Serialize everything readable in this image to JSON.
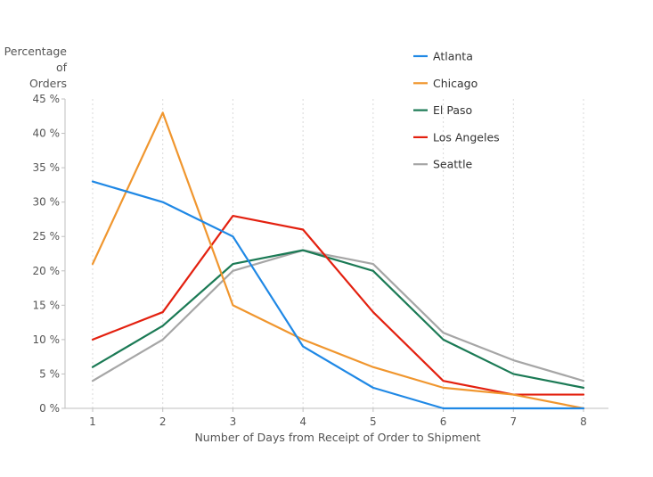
{
  "chart_data": {
    "type": "line",
    "ylabel_lines": [
      "Percentage",
      "of",
      "Orders"
    ],
    "xlabel": "Number of Days from Receipt of Order to Shipment",
    "x": [
      1,
      2,
      3,
      4,
      5,
      6,
      7,
      8
    ],
    "x_tick_labels": [
      "1",
      "2",
      "3",
      "4",
      "5",
      "6",
      "7",
      "8"
    ],
    "y_ticks": [
      0,
      5,
      10,
      15,
      20,
      25,
      30,
      35,
      40,
      45
    ],
    "y_tick_labels": [
      "0 %",
      "5 %",
      "10 %",
      "15 %",
      "20 %",
      "25 %",
      "30 %",
      "35 %",
      "40 %",
      "45 %"
    ],
    "ylim": [
      0,
      45
    ],
    "xlim": [
      1,
      8
    ],
    "vertical_gridlines": true,
    "legend_position": "top-right",
    "series": [
      {
        "name": "Atlanta",
        "color": "#1f88e5",
        "values": [
          33,
          30,
          25,
          9,
          3,
          0,
          0,
          0
        ]
      },
      {
        "name": "Chicago",
        "color": "#f0962e",
        "values": [
          21,
          43,
          15,
          10,
          6,
          3,
          2,
          0
        ]
      },
      {
        "name": "El Paso",
        "color": "#1b7a55",
        "values": [
          6,
          12,
          21,
          23,
          20,
          10,
          5,
          3
        ]
      },
      {
        "name": "Los Angeles",
        "color": "#e3200f",
        "values": [
          10,
          14,
          28,
          26,
          14,
          4,
          2,
          2
        ]
      },
      {
        "name": "Seattle",
        "color": "#a6a6a6",
        "values": [
          4,
          10,
          20,
          23,
          21,
          11,
          7,
          4
        ]
      }
    ]
  }
}
